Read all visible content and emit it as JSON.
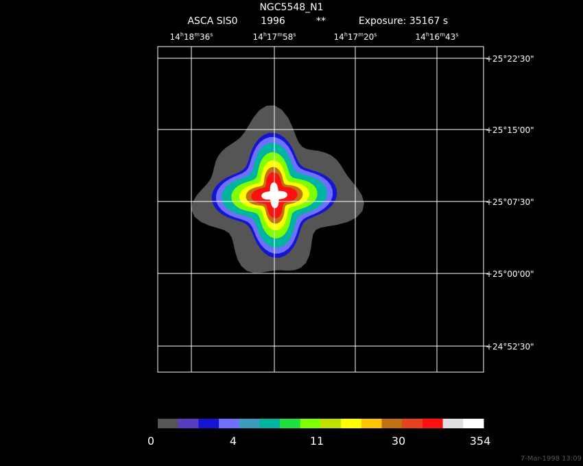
{
  "header": {
    "title": "NGC5548_N1",
    "instrument": "ASCA SIS0",
    "year": "1996",
    "flag": "**",
    "exposure": "Exposure: 35167 s"
  },
  "ra_ticks": [
    [
      "14",
      "h",
      "18",
      "m",
      "36",
      "s"
    ],
    [
      "14",
      "h",
      "17",
      "m",
      "58",
      "s"
    ],
    [
      "14",
      "h",
      "17",
      "m",
      "20",
      "s"
    ],
    [
      "14",
      "h",
      "16",
      "m",
      "43",
      "s"
    ]
  ],
  "dec_ticks": [
    "+25°22'30\"",
    "+25°15'00\"",
    "+25°07'30\"",
    "+25°00'00\"",
    "+24°52'30\""
  ],
  "colorbar": {
    "labels": [
      "0",
      "4",
      "11",
      "30",
      "354"
    ],
    "colors": [
      "#555555",
      "#5a3cc0",
      "#1414d2",
      "#7070ff",
      "#3c9cbc",
      "#00b4a0",
      "#20e040",
      "#80ff00",
      "#c0e000",
      "#ffff00",
      "#ffc400",
      "#c07010",
      "#e84020",
      "#ff1010",
      "#e0e0e0",
      "#ffffff"
    ]
  },
  "footer": "7-Mar-1998 13:09"
}
